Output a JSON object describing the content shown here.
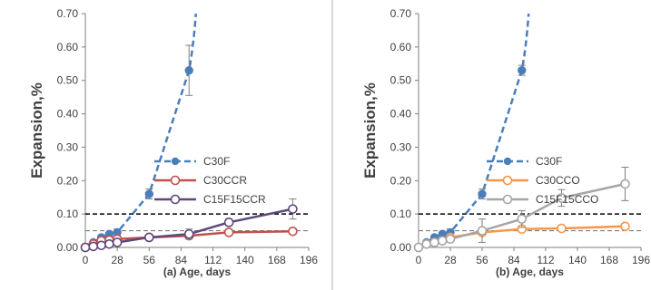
{
  "chart_data": [
    {
      "type": "line",
      "xlabel": "(a) Age, days",
      "ylabel": "Expansion,%",
      "xlim": [
        0,
        196
      ],
      "ylim": [
        0,
        0.7
      ],
      "xticks": [
        0,
        28,
        56,
        84,
        112,
        140,
        168,
        196
      ],
      "yticks": [
        "0.00",
        "0.10",
        "0.20",
        "0.30",
        "0.40",
        "0.50",
        "0.60",
        "0.70"
      ],
      "grid": false,
      "legend_position": "center-right",
      "reference_lines": [
        {
          "y": 0.1,
          "style": "dashed",
          "color": "#000000"
        },
        {
          "y": 0.05,
          "style": "dashed",
          "color": "#7f7f7f"
        }
      ],
      "series": [
        {
          "name": "C30F",
          "color": "#4a7ebb",
          "marker": "filled-circle",
          "line": "dashed-curve",
          "x": [
            0,
            7,
            14,
            21,
            28,
            56,
            91
          ],
          "y": [
            0.0,
            0.015,
            0.03,
            0.04,
            0.045,
            0.16,
            0.53
          ],
          "err": [
            0,
            0.005,
            0.005,
            0.005,
            0.01,
            0.015,
            0.075
          ],
          "curve_continues_to": {
            "x": 97,
            "y": 0.7
          }
        },
        {
          "name": "C30CCR",
          "color": "#c0504d",
          "marker": "open-circle",
          "line": "solid",
          "x": [
            0,
            7,
            14,
            21,
            28,
            56,
            91,
            126,
            182
          ],
          "y": [
            0.0,
            0.01,
            0.02,
            0.022,
            0.025,
            0.03,
            0.035,
            0.045,
            0.048
          ],
          "err": [
            0,
            0,
            0,
            0,
            0,
            0.005,
            0.005,
            0.005,
            0.005
          ]
        },
        {
          "name": "C15F15CCR",
          "color": "#5f497a",
          "marker": "open-circle",
          "line": "solid",
          "x": [
            0,
            7,
            14,
            21,
            28,
            56,
            91,
            126,
            182
          ],
          "y": [
            0.0,
            0.003,
            0.006,
            0.01,
            0.015,
            0.03,
            0.04,
            0.075,
            0.115
          ],
          "err": [
            0,
            0,
            0,
            0,
            0,
            0.005,
            0.015,
            0.01,
            0.03
          ]
        }
      ]
    },
    {
      "type": "line",
      "xlabel": "(b) Age, days",
      "ylabel": "Expansion,%",
      "xlim": [
        0,
        196
      ],
      "ylim": [
        0,
        0.7
      ],
      "xticks": [
        0,
        28,
        56,
        84,
        112,
        140,
        168,
        196
      ],
      "yticks": [
        "0.00",
        "0.10",
        "0.20",
        "0.30",
        "0.40",
        "0.50",
        "0.60",
        "0.70"
      ],
      "grid": false,
      "legend_position": "center-right",
      "reference_lines": [
        {
          "y": 0.1,
          "style": "dashed",
          "color": "#000000"
        },
        {
          "y": 0.05,
          "style": "dashed",
          "color": "#7f7f7f"
        }
      ],
      "series": [
        {
          "name": "C30F",
          "color": "#4a7ebb",
          "marker": "filled-circle",
          "line": "dashed-curve",
          "x": [
            0,
            7,
            14,
            21,
            28,
            56,
            91
          ],
          "y": [
            0.0,
            0.015,
            0.03,
            0.04,
            0.045,
            0.16,
            0.53
          ],
          "err": [
            0,
            0.005,
            0.005,
            0.005,
            0.01,
            0.015,
            0.015
          ],
          "curve_continues_to": {
            "x": 97,
            "y": 0.7
          }
        },
        {
          "name": "C30CCO",
          "color": "#f79646",
          "marker": "open-circle",
          "line": "solid",
          "x": [
            0,
            7,
            14,
            21,
            28,
            56,
            91,
            126,
            182
          ],
          "y": [
            0.0,
            0.01,
            0.015,
            0.02,
            0.03,
            0.045,
            0.055,
            0.057,
            0.063
          ],
          "err": [
            0,
            0,
            0,
            0,
            0,
            0.005,
            0.005,
            0.005,
            0.005
          ]
        },
        {
          "name": "C15F15CCO",
          "color": "#a6a6a6",
          "marker": "open-circle",
          "line": "solid",
          "x": [
            0,
            7,
            14,
            21,
            28,
            56,
            91,
            126,
            182
          ],
          "y": [
            0.0,
            0.01,
            0.015,
            0.02,
            0.025,
            0.05,
            0.085,
            0.148,
            0.19
          ],
          "err": [
            0,
            0,
            0,
            0,
            0,
            0.035,
            0.025,
            0.025,
            0.05
          ]
        }
      ]
    }
  ]
}
